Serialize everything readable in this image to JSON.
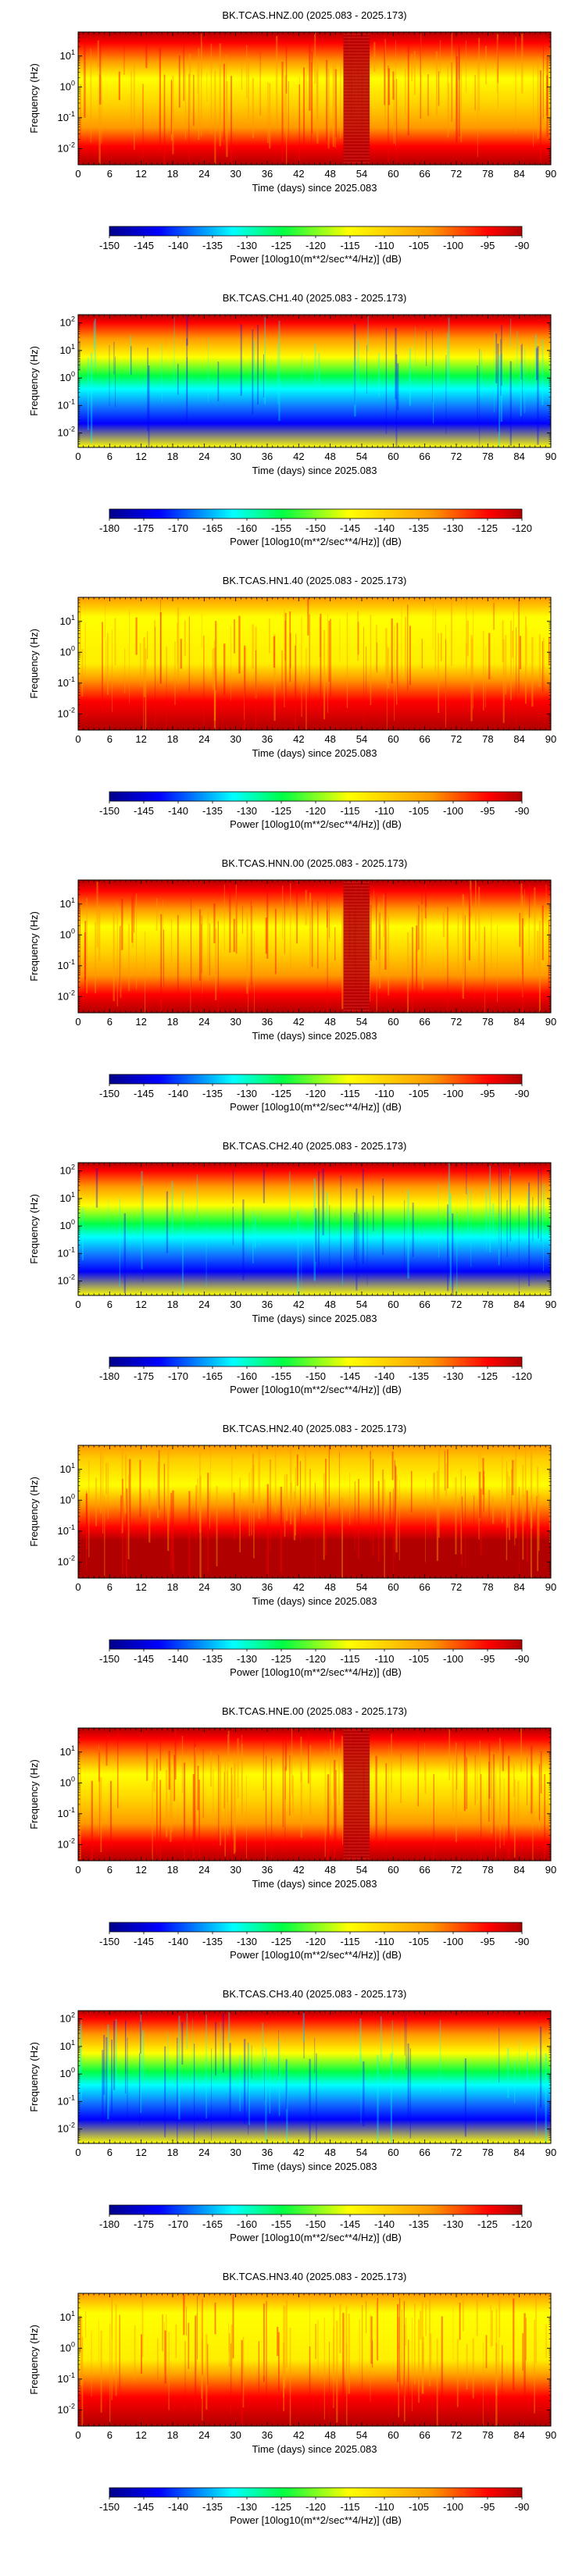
{
  "palette": {
    "red": "#ff0000",
    "dark_red": "#b00000",
    "orange": "#ff9900",
    "yellow": "#ffff00",
    "green": "#00ff44",
    "cyan": "#00ffff",
    "blue": "#0000ff",
    "dark_blue": "#00008a"
  },
  "chart_data": [
    {
      "type": "heatmap",
      "title": "BK.TCAS.HNZ.00 (2025.083 - 2025.173)",
      "xlabel": "Time (days) since 2025.083",
      "ylabel": "Frequency (Hz)",
      "x_ticks": [
        "0",
        "6",
        "12",
        "18",
        "24",
        "30",
        "36",
        "42",
        "48",
        "54",
        "60",
        "66",
        "72",
        "78",
        "84",
        "90"
      ],
      "xlim": [
        0,
        90
      ],
      "y_scale": "log",
      "y_ticks": [
        {
          "value": 10,
          "label": "10",
          "exp": "1"
        },
        {
          "value": 1,
          "label": "10",
          "exp": "0"
        },
        {
          "value": 0.1,
          "label": "10",
          "exp": "-1"
        },
        {
          "value": 0.01,
          "label": "10",
          "exp": "-2"
        }
      ],
      "ylim": [
        0.003,
        60
      ],
      "data_gap_days": [
        50.5,
        55.5
      ],
      "colorbar": {
        "label": "Power [10log10(m**2/sec**4/Hz)] (dB)",
        "ticks": [
          "-150",
          "-145",
          "-140",
          "-135",
          "-130",
          "-125",
          "-120",
          "-115",
          "-110",
          "-105",
          "-100",
          "-95",
          "-90"
        ],
        "range": [
          -150,
          -90
        ]
      }
    },
    {
      "type": "heatmap",
      "title": "BK.TCAS.CH1.40 (2025.083 - 2025.173)",
      "xlabel": "Time (days) since 2025.083",
      "ylabel": "Frequency (Hz)",
      "x_ticks": [
        "0",
        "6",
        "12",
        "18",
        "24",
        "30",
        "36",
        "42",
        "48",
        "54",
        "60",
        "66",
        "72",
        "78",
        "84",
        "90"
      ],
      "xlim": [
        0,
        90
      ],
      "y_scale": "log",
      "y_ticks": [
        {
          "value": 100,
          "label": "10",
          "exp": "2"
        },
        {
          "value": 10,
          "label": "10",
          "exp": "1"
        },
        {
          "value": 1,
          "label": "10",
          "exp": "0"
        },
        {
          "value": 0.1,
          "label": "10",
          "exp": "-1"
        },
        {
          "value": 0.01,
          "label": "10",
          "exp": "-2"
        }
      ],
      "ylim": [
        0.003,
        200
      ],
      "colorbar": {
        "label": "Power [10log10(m**2/sec**4/Hz)] (dB)",
        "ticks": [
          "-180",
          "-175",
          "-170",
          "-165",
          "-160",
          "-155",
          "-150",
          "-145",
          "-140",
          "-135",
          "-130",
          "-125",
          "-120"
        ],
        "range": [
          -180,
          -120
        ]
      }
    },
    {
      "type": "heatmap",
      "title": "BK.TCAS.HN1.40 (2025.083 - 2025.173)",
      "xlabel": "Time (days) since 2025.083",
      "ylabel": "Frequency (Hz)",
      "x_ticks": [
        "0",
        "6",
        "12",
        "18",
        "24",
        "30",
        "36",
        "42",
        "48",
        "54",
        "60",
        "66",
        "72",
        "78",
        "84",
        "90"
      ],
      "xlim": [
        0,
        90
      ],
      "y_scale": "log",
      "y_ticks": [
        {
          "value": 10,
          "label": "10",
          "exp": "1"
        },
        {
          "value": 1,
          "label": "10",
          "exp": "0"
        },
        {
          "value": 0.1,
          "label": "10",
          "exp": "-1"
        },
        {
          "value": 0.01,
          "label": "10",
          "exp": "-2"
        }
      ],
      "ylim": [
        0.003,
        60
      ],
      "colorbar": {
        "label": "Power [10log10(m**2/sec**4/Hz)] (dB)",
        "ticks": [
          "-150",
          "-145",
          "-140",
          "-135",
          "-130",
          "-125",
          "-120",
          "-115",
          "-110",
          "-105",
          "-100",
          "-95",
          "-90"
        ],
        "range": [
          -150,
          -90
        ]
      }
    },
    {
      "type": "heatmap",
      "title": "BK.TCAS.HNN.00 (2025.083 - 2025.173)",
      "xlabel": "Time (days) since 2025.083",
      "ylabel": "Frequency (Hz)",
      "x_ticks": [
        "0",
        "6",
        "12",
        "18",
        "24",
        "30",
        "36",
        "42",
        "48",
        "54",
        "60",
        "66",
        "72",
        "78",
        "84",
        "90"
      ],
      "xlim": [
        0,
        90
      ],
      "y_scale": "log",
      "y_ticks": [
        {
          "value": 10,
          "label": "10",
          "exp": "1"
        },
        {
          "value": 1,
          "label": "10",
          "exp": "0"
        },
        {
          "value": 0.1,
          "label": "10",
          "exp": "-1"
        },
        {
          "value": 0.01,
          "label": "10",
          "exp": "-2"
        }
      ],
      "ylim": [
        0.003,
        60
      ],
      "data_gap_days": [
        50.5,
        55.5
      ],
      "colorbar": {
        "label": "Power [10log10(m**2/sec**4/Hz)] (dB)",
        "ticks": [
          "-150",
          "-145",
          "-140",
          "-135",
          "-130",
          "-125",
          "-120",
          "-115",
          "-110",
          "-105",
          "-100",
          "-95",
          "-90"
        ],
        "range": [
          -150,
          -90
        ]
      }
    },
    {
      "type": "heatmap",
      "title": "BK.TCAS.CH2.40 (2025.083 - 2025.173)",
      "xlabel": "Time (days) since 2025.083",
      "ylabel": "Frequency (Hz)",
      "x_ticks": [
        "0",
        "6",
        "12",
        "18",
        "24",
        "30",
        "36",
        "42",
        "48",
        "54",
        "60",
        "66",
        "72",
        "78",
        "84",
        "90"
      ],
      "xlim": [
        0,
        90
      ],
      "y_scale": "log",
      "y_ticks": [
        {
          "value": 100,
          "label": "10",
          "exp": "2"
        },
        {
          "value": 10,
          "label": "10",
          "exp": "1"
        },
        {
          "value": 1,
          "label": "10",
          "exp": "0"
        },
        {
          "value": 0.1,
          "label": "10",
          "exp": "-1"
        },
        {
          "value": 0.01,
          "label": "10",
          "exp": "-2"
        }
      ],
      "ylim": [
        0.003,
        200
      ],
      "colorbar": {
        "label": "Power [10log10(m**2/sec**4/Hz)] (dB)",
        "ticks": [
          "-180",
          "-175",
          "-170",
          "-165",
          "-160",
          "-155",
          "-150",
          "-145",
          "-140",
          "-135",
          "-130",
          "-125",
          "-120"
        ],
        "range": [
          -180,
          -120
        ]
      }
    },
    {
      "type": "heatmap",
      "title": "BK.TCAS.HN2.40 (2025.083 - 2025.173)",
      "xlabel": "Time (days) since 2025.083",
      "ylabel": "Frequency (Hz)",
      "x_ticks": [
        "0",
        "6",
        "12",
        "18",
        "24",
        "30",
        "36",
        "42",
        "48",
        "54",
        "60",
        "66",
        "72",
        "78",
        "84",
        "90"
      ],
      "xlim": [
        0,
        90
      ],
      "y_scale": "log",
      "y_ticks": [
        {
          "value": 10,
          "label": "10",
          "exp": "1"
        },
        {
          "value": 1,
          "label": "10",
          "exp": "0"
        },
        {
          "value": 0.1,
          "label": "10",
          "exp": "-1"
        },
        {
          "value": 0.01,
          "label": "10",
          "exp": "-2"
        }
      ],
      "ylim": [
        0.003,
        60
      ],
      "colorbar": {
        "label": "Power [10log10(m**2/sec**4/Hz)] (dB)",
        "ticks": [
          "-150",
          "-145",
          "-140",
          "-135",
          "-130",
          "-125",
          "-120",
          "-115",
          "-110",
          "-105",
          "-100",
          "-95",
          "-90"
        ],
        "range": [
          -150,
          -90
        ]
      }
    },
    {
      "type": "heatmap",
      "title": "BK.TCAS.HNE.00 (2025.083 - 2025.173)",
      "xlabel": "Time (days) since 2025.083",
      "ylabel": "Frequency (Hz)",
      "x_ticks": [
        "0",
        "6",
        "12",
        "18",
        "24",
        "30",
        "36",
        "42",
        "48",
        "54",
        "60",
        "66",
        "72",
        "78",
        "84",
        "90"
      ],
      "xlim": [
        0,
        90
      ],
      "y_scale": "log",
      "y_ticks": [
        {
          "value": 10,
          "label": "10",
          "exp": "1"
        },
        {
          "value": 1,
          "label": "10",
          "exp": "0"
        },
        {
          "value": 0.1,
          "label": "10",
          "exp": "-1"
        },
        {
          "value": 0.01,
          "label": "10",
          "exp": "-2"
        }
      ],
      "ylim": [
        0.003,
        60
      ],
      "data_gap_days": [
        50.5,
        55.5
      ],
      "colorbar": {
        "label": "Power [10log10(m**2/sec**4/Hz)] (dB)",
        "ticks": [
          "-150",
          "-145",
          "-140",
          "-135",
          "-130",
          "-125",
          "-120",
          "-115",
          "-110",
          "-105",
          "-100",
          "-95",
          "-90"
        ],
        "range": [
          -150,
          -90
        ]
      }
    },
    {
      "type": "heatmap",
      "title": "BK.TCAS.CH3.40 (2025.083 - 2025.173)",
      "xlabel": "Time (days) since 2025.083",
      "ylabel": "Frequency (Hz)",
      "x_ticks": [
        "0",
        "6",
        "12",
        "18",
        "24",
        "30",
        "36",
        "42",
        "48",
        "54",
        "60",
        "66",
        "72",
        "78",
        "84",
        "90"
      ],
      "xlim": [
        0,
        90
      ],
      "y_scale": "log",
      "y_ticks": [
        {
          "value": 100,
          "label": "10",
          "exp": "2"
        },
        {
          "value": 10,
          "label": "10",
          "exp": "1"
        },
        {
          "value": 1,
          "label": "10",
          "exp": "0"
        },
        {
          "value": 0.1,
          "label": "10",
          "exp": "-1"
        },
        {
          "value": 0.01,
          "label": "10",
          "exp": "-2"
        }
      ],
      "ylim": [
        0.003,
        200
      ],
      "colorbar": {
        "label": "Power [10log10(m**2/sec**4/Hz)] (dB)",
        "ticks": [
          "-180",
          "-175",
          "-170",
          "-165",
          "-160",
          "-155",
          "-150",
          "-145",
          "-140",
          "-135",
          "-130",
          "-125",
          "-120"
        ],
        "range": [
          -180,
          -120
        ]
      }
    },
    {
      "type": "heatmap",
      "title": "BK.TCAS.HN3.40 (2025.083 - 2025.173)",
      "xlabel": "Time (days) since 2025.083",
      "ylabel": "Frequency (Hz)",
      "x_ticks": [
        "0",
        "6",
        "12",
        "18",
        "24",
        "30",
        "36",
        "42",
        "48",
        "54",
        "60",
        "66",
        "72",
        "78",
        "84",
        "90"
      ],
      "xlim": [
        0,
        90
      ],
      "y_scale": "log",
      "y_ticks": [
        {
          "value": 10,
          "label": "10",
          "exp": "1"
        },
        {
          "value": 1,
          "label": "10",
          "exp": "0"
        },
        {
          "value": 0.1,
          "label": "10",
          "exp": "-1"
        },
        {
          "value": 0.01,
          "label": "10",
          "exp": "-2"
        }
      ],
      "ylim": [
        0.003,
        60
      ],
      "colorbar": {
        "label": "Power [10log10(m**2/sec**4/Hz)] (dB)",
        "ticks": [
          "-150",
          "-145",
          "-140",
          "-135",
          "-130",
          "-125",
          "-120",
          "-115",
          "-110",
          "-105",
          "-100",
          "-95",
          "-90"
        ],
        "range": [
          -150,
          -90
        ]
      }
    }
  ]
}
